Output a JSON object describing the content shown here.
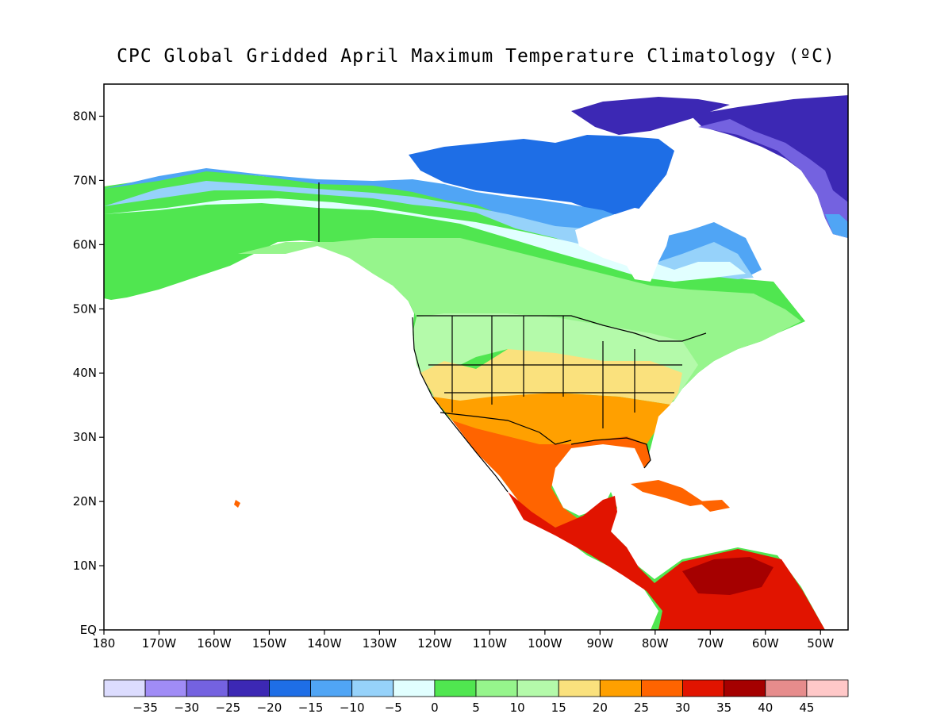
{
  "title": "CPC Global Gridded April Maximum Temperature Climatology (ºC)",
  "map": {
    "lat_labels": [
      "80N",
      "70N",
      "60N",
      "50N",
      "40N",
      "30N",
      "20N",
      "10N",
      "EQ"
    ],
    "lon_labels": [
      "180",
      "170W",
      "160W",
      "150W",
      "140W",
      "130W",
      "120W",
      "110W",
      "100W",
      "90W",
      "80W",
      "70W",
      "60W",
      "50W"
    ],
    "lat_range": [
      0,
      85
    ],
    "lon_range": [
      -180,
      -45
    ],
    "ocean_color": "#ffffff",
    "coastline_color": "#000000"
  },
  "colorbar": {
    "labels": [
      "−35",
      "−30",
      "−25",
      "−20",
      "−15",
      "−10",
      "−5",
      "0",
      "5",
      "10",
      "15",
      "20",
      "25",
      "30",
      "35",
      "40",
      "45"
    ],
    "colors": [
      "#dcdcfe",
      "#a08cf6",
      "#7462e0",
      "#3c28b4",
      "#1e6ee6",
      "#50a5f5",
      "#96d2fa",
      "#e1ffff",
      "#50e650",
      "#96f58c",
      "#b4faaa",
      "#fae17d",
      "#ffa000",
      "#ff6400",
      "#e11400",
      "#a50000",
      "#e68c8c",
      "#ffc8c8"
    ]
  }
}
